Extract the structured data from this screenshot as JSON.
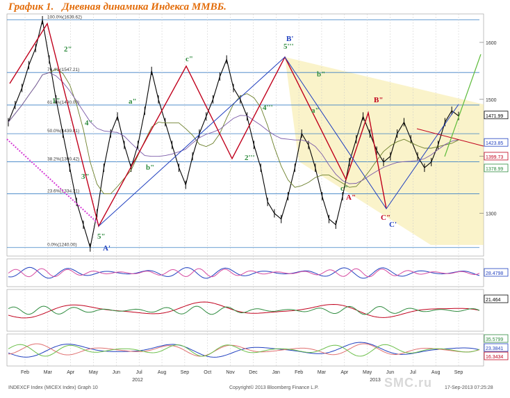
{
  "header": {
    "figure_label": "График 1.",
    "title": "Дневная динамика Индекса ММВБ."
  },
  "footer": {
    "left": "INDEXCF Index (MICEX Index) Graph 10",
    "center": "Copyright© 2013 Bloomberg Finance L.P.",
    "right": "17-Sep-2013 07:25:28",
    "watermark": "SMC.ru"
  },
  "colors": {
    "title": "#e36c09",
    "price": "#000000",
    "red_line": "#c0001c",
    "blue_line": "#1f3fbf",
    "channel": "#f3e48a"
  },
  "chart_data": [
    {
      "type": "line",
      "panel": "price",
      "x_labels": [
        "Feb",
        "Mar",
        "Apr",
        "May",
        "Jun",
        "Jul",
        "Aug",
        "Sep",
        "Oct",
        "Nov",
        "Dec",
        "Jan",
        "Feb",
        "Mar",
        "Apr",
        "May",
        "Jun",
        "Jul",
        "Aug",
        "Sep"
      ],
      "year_labels": [
        "2012",
        "2013"
      ],
      "y_ticks": [
        1300,
        1400,
        1500,
        1600
      ],
      "ylim": [
        1225,
        1650
      ],
      "fib_levels": [
        {
          "label": "100.0%(1639.62)",
          "value": 1639.62
        },
        {
          "label": "76.4%(1547.21)",
          "value": 1547.21
        },
        {
          "label": "61.8%(1490.09)",
          "value": 1490.09
        },
        {
          "label": "50.0%(1439.81)",
          "value": 1439.81
        },
        {
          "label": "38.2%(1390.42)",
          "value": 1390.42
        },
        {
          "label": "23.6%(1334.21)",
          "value": 1334.21
        },
        {
          "label": "0.0%(1240.00)",
          "value": 1240.0
        }
      ],
      "last_values": [
        {
          "label": "1471.99",
          "value": 1471.99,
          "color": "#000000"
        },
        {
          "label": "1423.85",
          "value": 1423.85,
          "color": "#1f3fbf"
        },
        {
          "label": "1399.73",
          "value": 1399.73,
          "color": "#c0001c"
        },
        {
          "label": "1378.99",
          "value": 1378.99,
          "color": "#2e8b3e"
        }
      ],
      "series": [
        {
          "values": [
            1460,
            1490,
            1520,
            1560,
            1590,
            1639,
            1570,
            1500,
            1440,
            1380,
            1320,
            1280,
            1240,
            1300,
            1380,
            1440,
            1470,
            1420,
            1380,
            1420,
            1480,
            1550,
            1500,
            1460,
            1420,
            1380,
            1350,
            1400,
            1440,
            1470,
            1500,
            1540,
            1570,
            1520,
            1500,
            1470,
            1420,
            1380,
            1320,
            1300,
            1290,
            1330,
            1380,
            1440,
            1420,
            1380,
            1330,
            1290,
            1280,
            1330,
            1390,
            1430,
            1470,
            1440,
            1410,
            1390,
            1400,
            1440,
            1460,
            1430,
            1400,
            1380,
            1390,
            1420,
            1460,
            1480,
            1471
          ]
        }
      ],
      "wave_labels": [
        {
          "text": "1\"",
          "color": "#2e8b3e"
        },
        {
          "text": "2\"",
          "color": "#2e8b3e"
        },
        {
          "text": "3\"",
          "color": "#2e8b3e"
        },
        {
          "text": "4\"",
          "color": "#2e8b3e"
        },
        {
          "text": "5\"",
          "color": "#2e8b3e"
        },
        {
          "text": "A'",
          "color": "#1f3fbf"
        },
        {
          "text": "a\"",
          "color": "#2e8b3e"
        },
        {
          "text": "b\"",
          "color": "#2e8b3e"
        },
        {
          "text": "c\"",
          "color": "#2e8b3e"
        },
        {
          "text": "2'''",
          "color": "#2e8b3e"
        },
        {
          "text": "4'''",
          "color": "#2e8b3e"
        },
        {
          "text": "5'''",
          "color": "#2e8b3e"
        },
        {
          "text": "B'",
          "color": "#1f3fbf"
        },
        {
          "text": "b\"",
          "color": "#2e8b3e"
        },
        {
          "text": "a\"",
          "color": "#2e8b3e"
        },
        {
          "text": "B\"",
          "color": "#c0001c"
        },
        {
          "text": "c\"",
          "color": "#2e8b3e"
        },
        {
          "text": "A\"",
          "color": "#c0001c"
        },
        {
          "text": "C\"",
          "color": "#c0001c"
        },
        {
          "text": "C'",
          "color": "#1f3fbf"
        }
      ]
    },
    {
      "type": "area",
      "panel": "oscillator-1",
      "last_values": [
        {
          "label": "28.4798",
          "value": 28.4798,
          "color": "#1f3fbf"
        }
      ]
    },
    {
      "type": "line",
      "panel": "oscillator-2",
      "last_values": [
        {
          "label": "21.464",
          "value": 21.464,
          "color": "#000000"
        }
      ]
    },
    {
      "type": "area",
      "panel": "oscillator-3",
      "last_values": [
        {
          "label": "35.5799",
          "value": 35.5799,
          "color": "#2e8b3e"
        },
        {
          "label": "23.3841",
          "value": 23.3841,
          "color": "#1f3fbf"
        },
        {
          "label": "16.3434",
          "value": 16.3434,
          "color": "#c0001c"
        }
      ]
    }
  ]
}
